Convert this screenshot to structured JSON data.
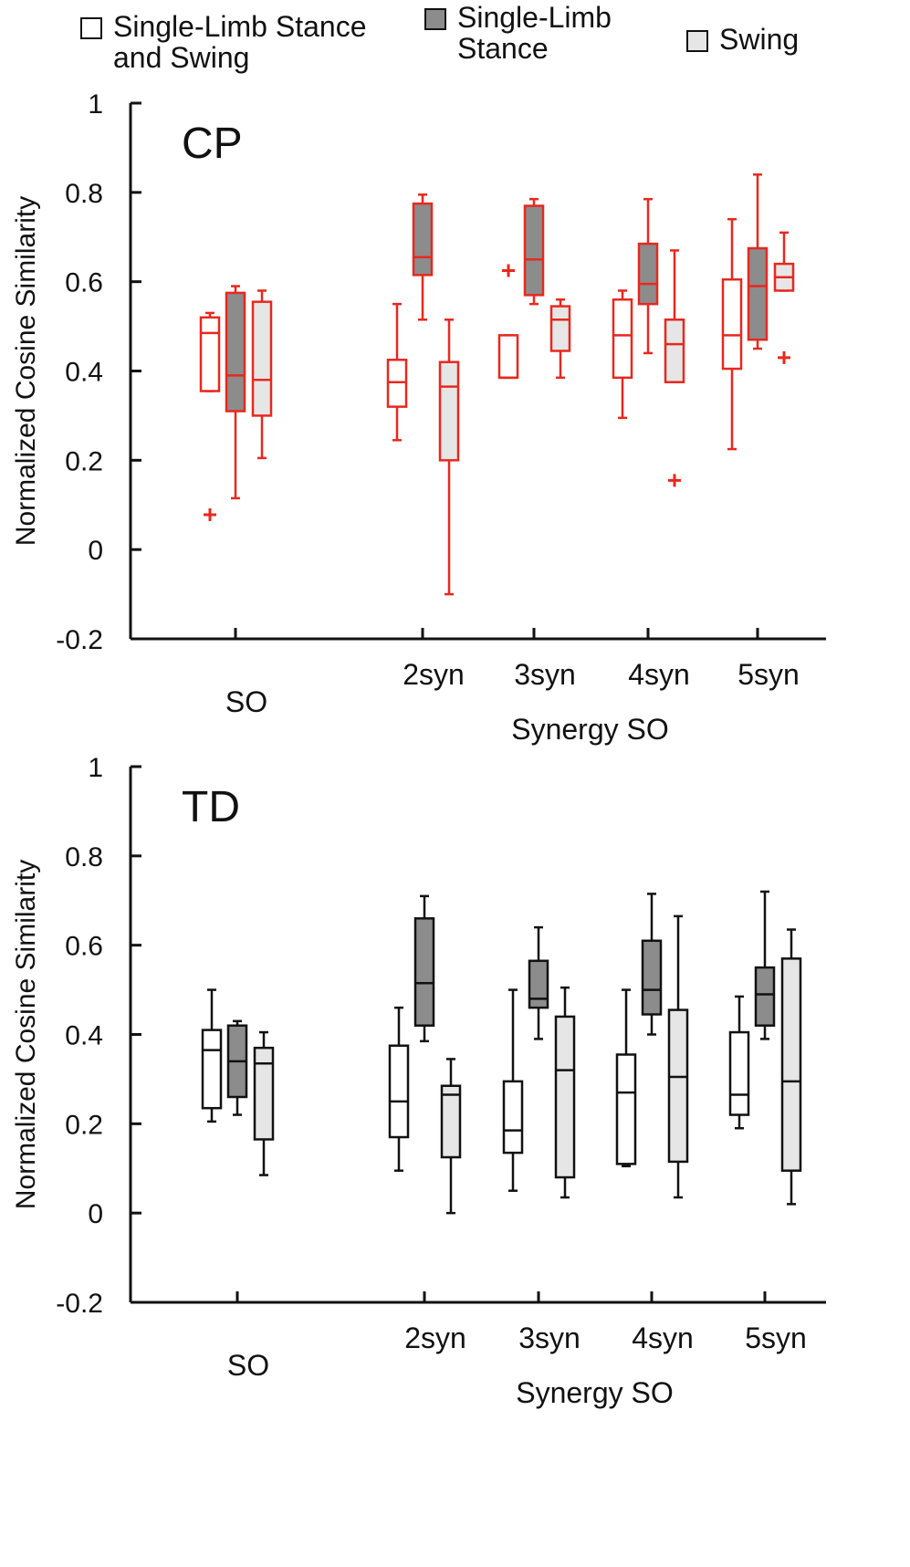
{
  "chart_data": [
    {
      "type": "box",
      "title": "CP",
      "ylabel": "Normalized Cosine Similarity",
      "xlabel": "Synergy SO",
      "categories": [
        "SO",
        "2syn",
        "3syn",
        "4syn",
        "5syn"
      ],
      "ylim": [
        -0.2,
        1
      ],
      "yticks": [
        -0.2,
        0,
        0.2,
        0.4,
        0.6,
        0.8,
        1
      ],
      "edge_color": "#e8281e",
      "series": [
        {
          "name": "Single-Limb Stance and Swing",
          "color": "#ffffff",
          "stats": [
            {
              "whislo": 0.355,
              "q1": 0.355,
              "med": 0.485,
              "q3": 0.52,
              "whishi": 0.53,
              "fliers": [
                0.078
              ]
            },
            {
              "whislo": 0.245,
              "q1": 0.32,
              "med": 0.375,
              "q3": 0.425,
              "whishi": 0.55,
              "fliers": []
            },
            {
              "whislo": 0.385,
              "q1": 0.385,
              "med": 0.385,
              "q3": 0.48,
              "whishi": 0.48,
              "fliers": [
                0.625
              ]
            },
            {
              "whislo": 0.295,
              "q1": 0.385,
              "med": 0.48,
              "q3": 0.56,
              "whishi": 0.58,
              "fliers": []
            },
            {
              "whislo": 0.225,
              "q1": 0.405,
              "med": 0.48,
              "q3": 0.605,
              "whishi": 0.74,
              "fliers": []
            }
          ]
        },
        {
          "name": "Single-Limb Stance",
          "color": "#8c8c8c",
          "stats": [
            {
              "whislo": 0.115,
              "q1": 0.31,
              "med": 0.39,
              "q3": 0.575,
              "whishi": 0.59,
              "fliers": []
            },
            {
              "whislo": 0.515,
              "q1": 0.615,
              "med": 0.655,
              "q3": 0.775,
              "whishi": 0.795,
              "fliers": []
            },
            {
              "whislo": 0.55,
              "q1": 0.57,
              "med": 0.65,
              "q3": 0.77,
              "whishi": 0.785,
              "fliers": []
            },
            {
              "whislo": 0.44,
              "q1": 0.55,
              "med": 0.595,
              "q3": 0.685,
              "whishi": 0.785,
              "fliers": []
            },
            {
              "whislo": 0.45,
              "q1": 0.47,
              "med": 0.59,
              "q3": 0.675,
              "whishi": 0.84,
              "fliers": []
            }
          ]
        },
        {
          "name": "Swing",
          "color": "#e6e6e6",
          "stats": [
            {
              "whislo": 0.205,
              "q1": 0.3,
              "med": 0.38,
              "q3": 0.555,
              "whishi": 0.58,
              "fliers": []
            },
            {
              "whislo": -0.1,
              "q1": 0.2,
              "med": 0.365,
              "q3": 0.42,
              "whishi": 0.515,
              "fliers": []
            },
            {
              "whislo": 0.385,
              "q1": 0.445,
              "med": 0.515,
              "q3": 0.545,
              "whishi": 0.56,
              "fliers": []
            },
            {
              "whislo": 0.375,
              "q1": 0.375,
              "med": 0.46,
              "q3": 0.515,
              "whishi": 0.67,
              "fliers": [
                0.155
              ]
            },
            {
              "whislo": 0.58,
              "q1": 0.58,
              "med": 0.61,
              "q3": 0.64,
              "whishi": 0.71,
              "fliers": [
                0.43
              ]
            }
          ]
        }
      ]
    },
    {
      "type": "box",
      "title": "TD",
      "ylabel": "Normalized Cosine Similarity",
      "xlabel": "Synergy SO",
      "categories": [
        "SO",
        "2syn",
        "3syn",
        "4syn",
        "5syn"
      ],
      "ylim": [
        -0.2,
        1
      ],
      "yticks": [
        -0.2,
        0,
        0.2,
        0.4,
        0.6,
        0.8,
        1
      ],
      "edge_color": "#111111",
      "series": [
        {
          "color": "#ffffff",
          "stats": [
            {
              "whislo": 0.205,
              "q1": 0.235,
              "med": 0.365,
              "q3": 0.41,
              "whishi": 0.5,
              "fliers": []
            },
            {
              "whislo": 0.095,
              "q1": 0.17,
              "med": 0.25,
              "q3": 0.375,
              "whishi": 0.46,
              "fliers": []
            },
            {
              "whislo": 0.05,
              "q1": 0.135,
              "med": 0.185,
              "q3": 0.295,
              "whishi": 0.5,
              "fliers": []
            },
            {
              "whislo": 0.105,
              "q1": 0.11,
              "med": 0.27,
              "q3": 0.355,
              "whishi": 0.5,
              "fliers": []
            },
            {
              "whislo": 0.19,
              "q1": 0.22,
              "med": 0.265,
              "q3": 0.405,
              "whishi": 0.485,
              "fliers": []
            }
          ]
        },
        {
          "color": "#8c8c8c",
          "stats": [
            {
              "whislo": 0.22,
              "q1": 0.26,
              "med": 0.34,
              "q3": 0.42,
              "whishi": 0.43,
              "fliers": []
            },
            {
              "whislo": 0.385,
              "q1": 0.42,
              "med": 0.515,
              "q3": 0.66,
              "whishi": 0.71,
              "fliers": []
            },
            {
              "whislo": 0.39,
              "q1": 0.46,
              "med": 0.48,
              "q3": 0.565,
              "whishi": 0.64,
              "fliers": []
            },
            {
              "whislo": 0.4,
              "q1": 0.445,
              "med": 0.5,
              "q3": 0.61,
              "whishi": 0.715,
              "fliers": []
            },
            {
              "whislo": 0.39,
              "q1": 0.42,
              "med": 0.49,
              "q3": 0.55,
              "whishi": 0.72,
              "fliers": []
            }
          ]
        },
        {
          "color": "#e6e6e6",
          "stats": [
            {
              "whislo": 0.085,
              "q1": 0.165,
              "med": 0.335,
              "q3": 0.37,
              "whishi": 0.405,
              "fliers": []
            },
            {
              "whislo": 0,
              "q1": 0.125,
              "med": 0.265,
              "q3": 0.285,
              "whishi": 0.345,
              "fliers": []
            },
            {
              "whislo": 0.035,
              "q1": 0.08,
              "med": 0.32,
              "q3": 0.44,
              "whishi": 0.505,
              "fliers": []
            },
            {
              "whislo": 0.035,
              "q1": 0.115,
              "med": 0.305,
              "q3": 0.455,
              "whishi": 0.665,
              "fliers": []
            },
            {
              "whislo": 0.02,
              "q1": 0.095,
              "med": 0.295,
              "q3": 0.57,
              "whishi": 0.635,
              "fliers": []
            }
          ]
        }
      ]
    }
  ]
}
